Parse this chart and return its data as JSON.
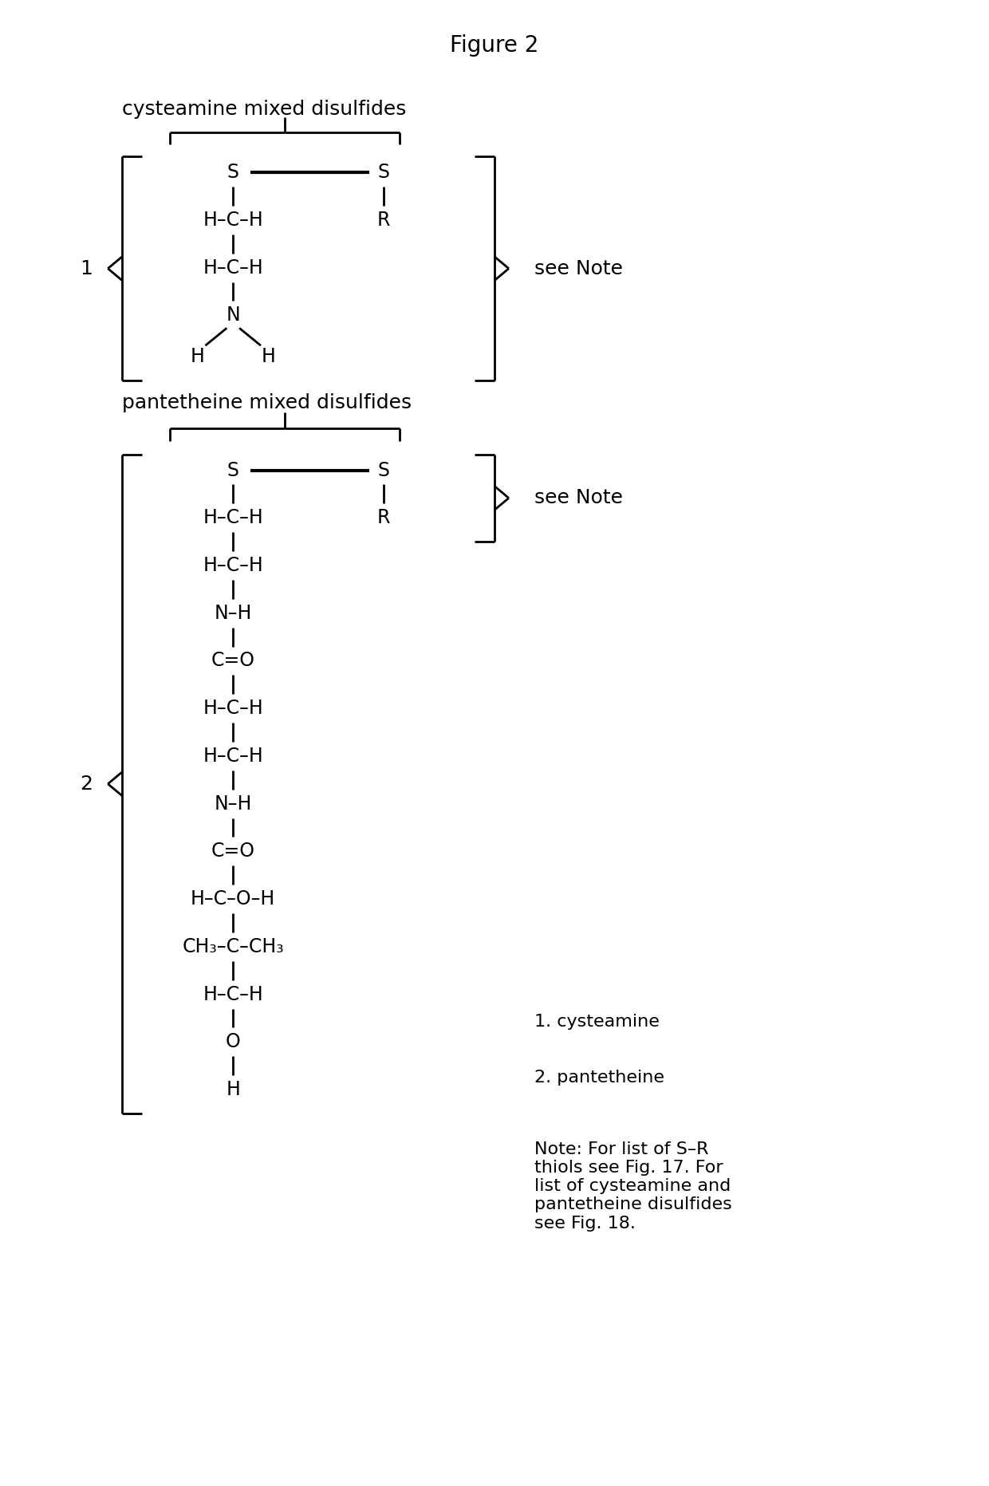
{
  "title": "Figure 2",
  "title_fontsize": 20,
  "label_fontsize": 18,
  "chem_fontsize": 17,
  "note_fontsize": 16,
  "bg_color": "#ffffff",
  "text_color": "#000000",
  "sect1_label": "cysteamine mixed disulfides",
  "sect2_label": "pantetheine mixed disulfides",
  "note1": "1. cysteamine",
  "note2": "2. pantetheine",
  "note3": "Note: For list of S–R\nthiols see Fig. 17. For\nlist of cysteamine and\npantetheine disulfides\nsee Fig. 18.",
  "see_note_text": "see Note",
  "chain1": [
    "H–C–H",
    "H–C–H",
    "N",
    "H",
    "H"
  ],
  "chain2": [
    "H–C–H",
    "H–C–H",
    "N–H",
    "C=O",
    "H–C–H",
    "H–C–H",
    "N–H",
    "C=O",
    "H–C–O–H",
    "CH₃–C–CH₃",
    "H–C–H",
    "O",
    "H"
  ]
}
